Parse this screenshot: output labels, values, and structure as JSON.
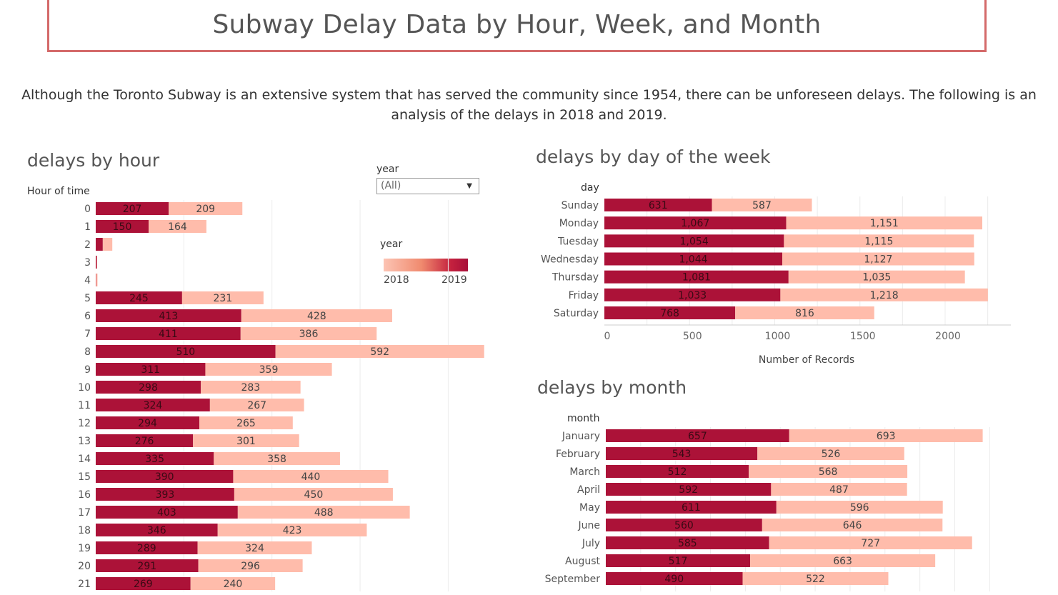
{
  "page": {
    "title": "Subway Delay Data by Hour, Week, and Month",
    "intro": "Although the Toronto Subway is an extensive system that has served the community since 1954, there can be unforeseen delays. The following is an analysis of the delays in 2018 and 2019."
  },
  "filter": {
    "label": "year",
    "value": "(All)"
  },
  "legend": {
    "label": "year",
    "min_label": "2018",
    "max_label": "2019"
  },
  "colors": {
    "year_2019": "#ac1238",
    "year_2018": "#ffbcab",
    "border": "#d46a6a"
  },
  "chart_data": [
    {
      "type": "bar",
      "orientation": "horizontal",
      "stacked": true,
      "title": "delays by hour",
      "ylabel": "Hour of time",
      "categories": [
        "0",
        "1",
        "2",
        "3",
        "4",
        "5",
        "6",
        "7",
        "8",
        "9",
        "10",
        "11",
        "12",
        "13",
        "14",
        "15",
        "16",
        "17",
        "18",
        "19",
        "20",
        "21"
      ],
      "series": [
        {
          "name": "2019",
          "values": [
            207,
            150,
            20,
            3,
            1,
            245,
            413,
            411,
            510,
            311,
            298,
            324,
            294,
            276,
            335,
            390,
            393,
            403,
            346,
            289,
            291,
            269
          ]
        },
        {
          "name": "2018",
          "values": [
            209,
            164,
            27,
            1,
            4,
            231,
            428,
            386,
            592,
            359,
            283,
            267,
            265,
            301,
            358,
            440,
            450,
            488,
            423,
            324,
            296,
            240
          ]
        }
      ],
      "label_threshold": 100,
      "xlim": [
        0,
        1120
      ],
      "grid": true
    },
    {
      "type": "bar",
      "orientation": "horizontal",
      "stacked": true,
      "title": "delays by day of the week",
      "ylabel": "day",
      "xlabel": "Number of Records",
      "categories": [
        "Sunday",
        "Monday",
        "Tuesday",
        "Wednesday",
        "Thursday",
        "Friday",
        "Saturday"
      ],
      "series": [
        {
          "name": "2019",
          "values": [
            631,
            1067,
            1054,
            1044,
            1081,
            1033,
            768
          ]
        },
        {
          "name": "2018",
          "values": [
            587,
            1151,
            1115,
            1127,
            1035,
            1218,
            816
          ]
        }
      ],
      "value_labels": [
        [
          "631",
          "1,067",
          "1,054",
          "1,044",
          "1,081",
          "1,033",
          "768"
        ],
        [
          "587",
          "1,151",
          "1,115",
          "1,127",
          "1,035",
          "1,218",
          "816"
        ]
      ],
      "xticks": [
        0,
        500,
        1000,
        1500,
        2000
      ],
      "xlim": [
        0,
        2350
      ],
      "grid": true
    },
    {
      "type": "bar",
      "orientation": "horizontal",
      "stacked": true,
      "title": "delays by month",
      "ylabel": "month",
      "categories": [
        "January",
        "February",
        "March",
        "April",
        "May",
        "June",
        "July",
        "August",
        "September"
      ],
      "series": [
        {
          "name": "2019",
          "values": [
            657,
            543,
            512,
            592,
            611,
            560,
            585,
            517,
            490
          ]
        },
        {
          "name": "2018",
          "values": [
            693,
            526,
            568,
            487,
            596,
            646,
            727,
            663,
            522
          ]
        }
      ],
      "xlim": [
        0,
        1410
      ],
      "grid": true
    }
  ]
}
